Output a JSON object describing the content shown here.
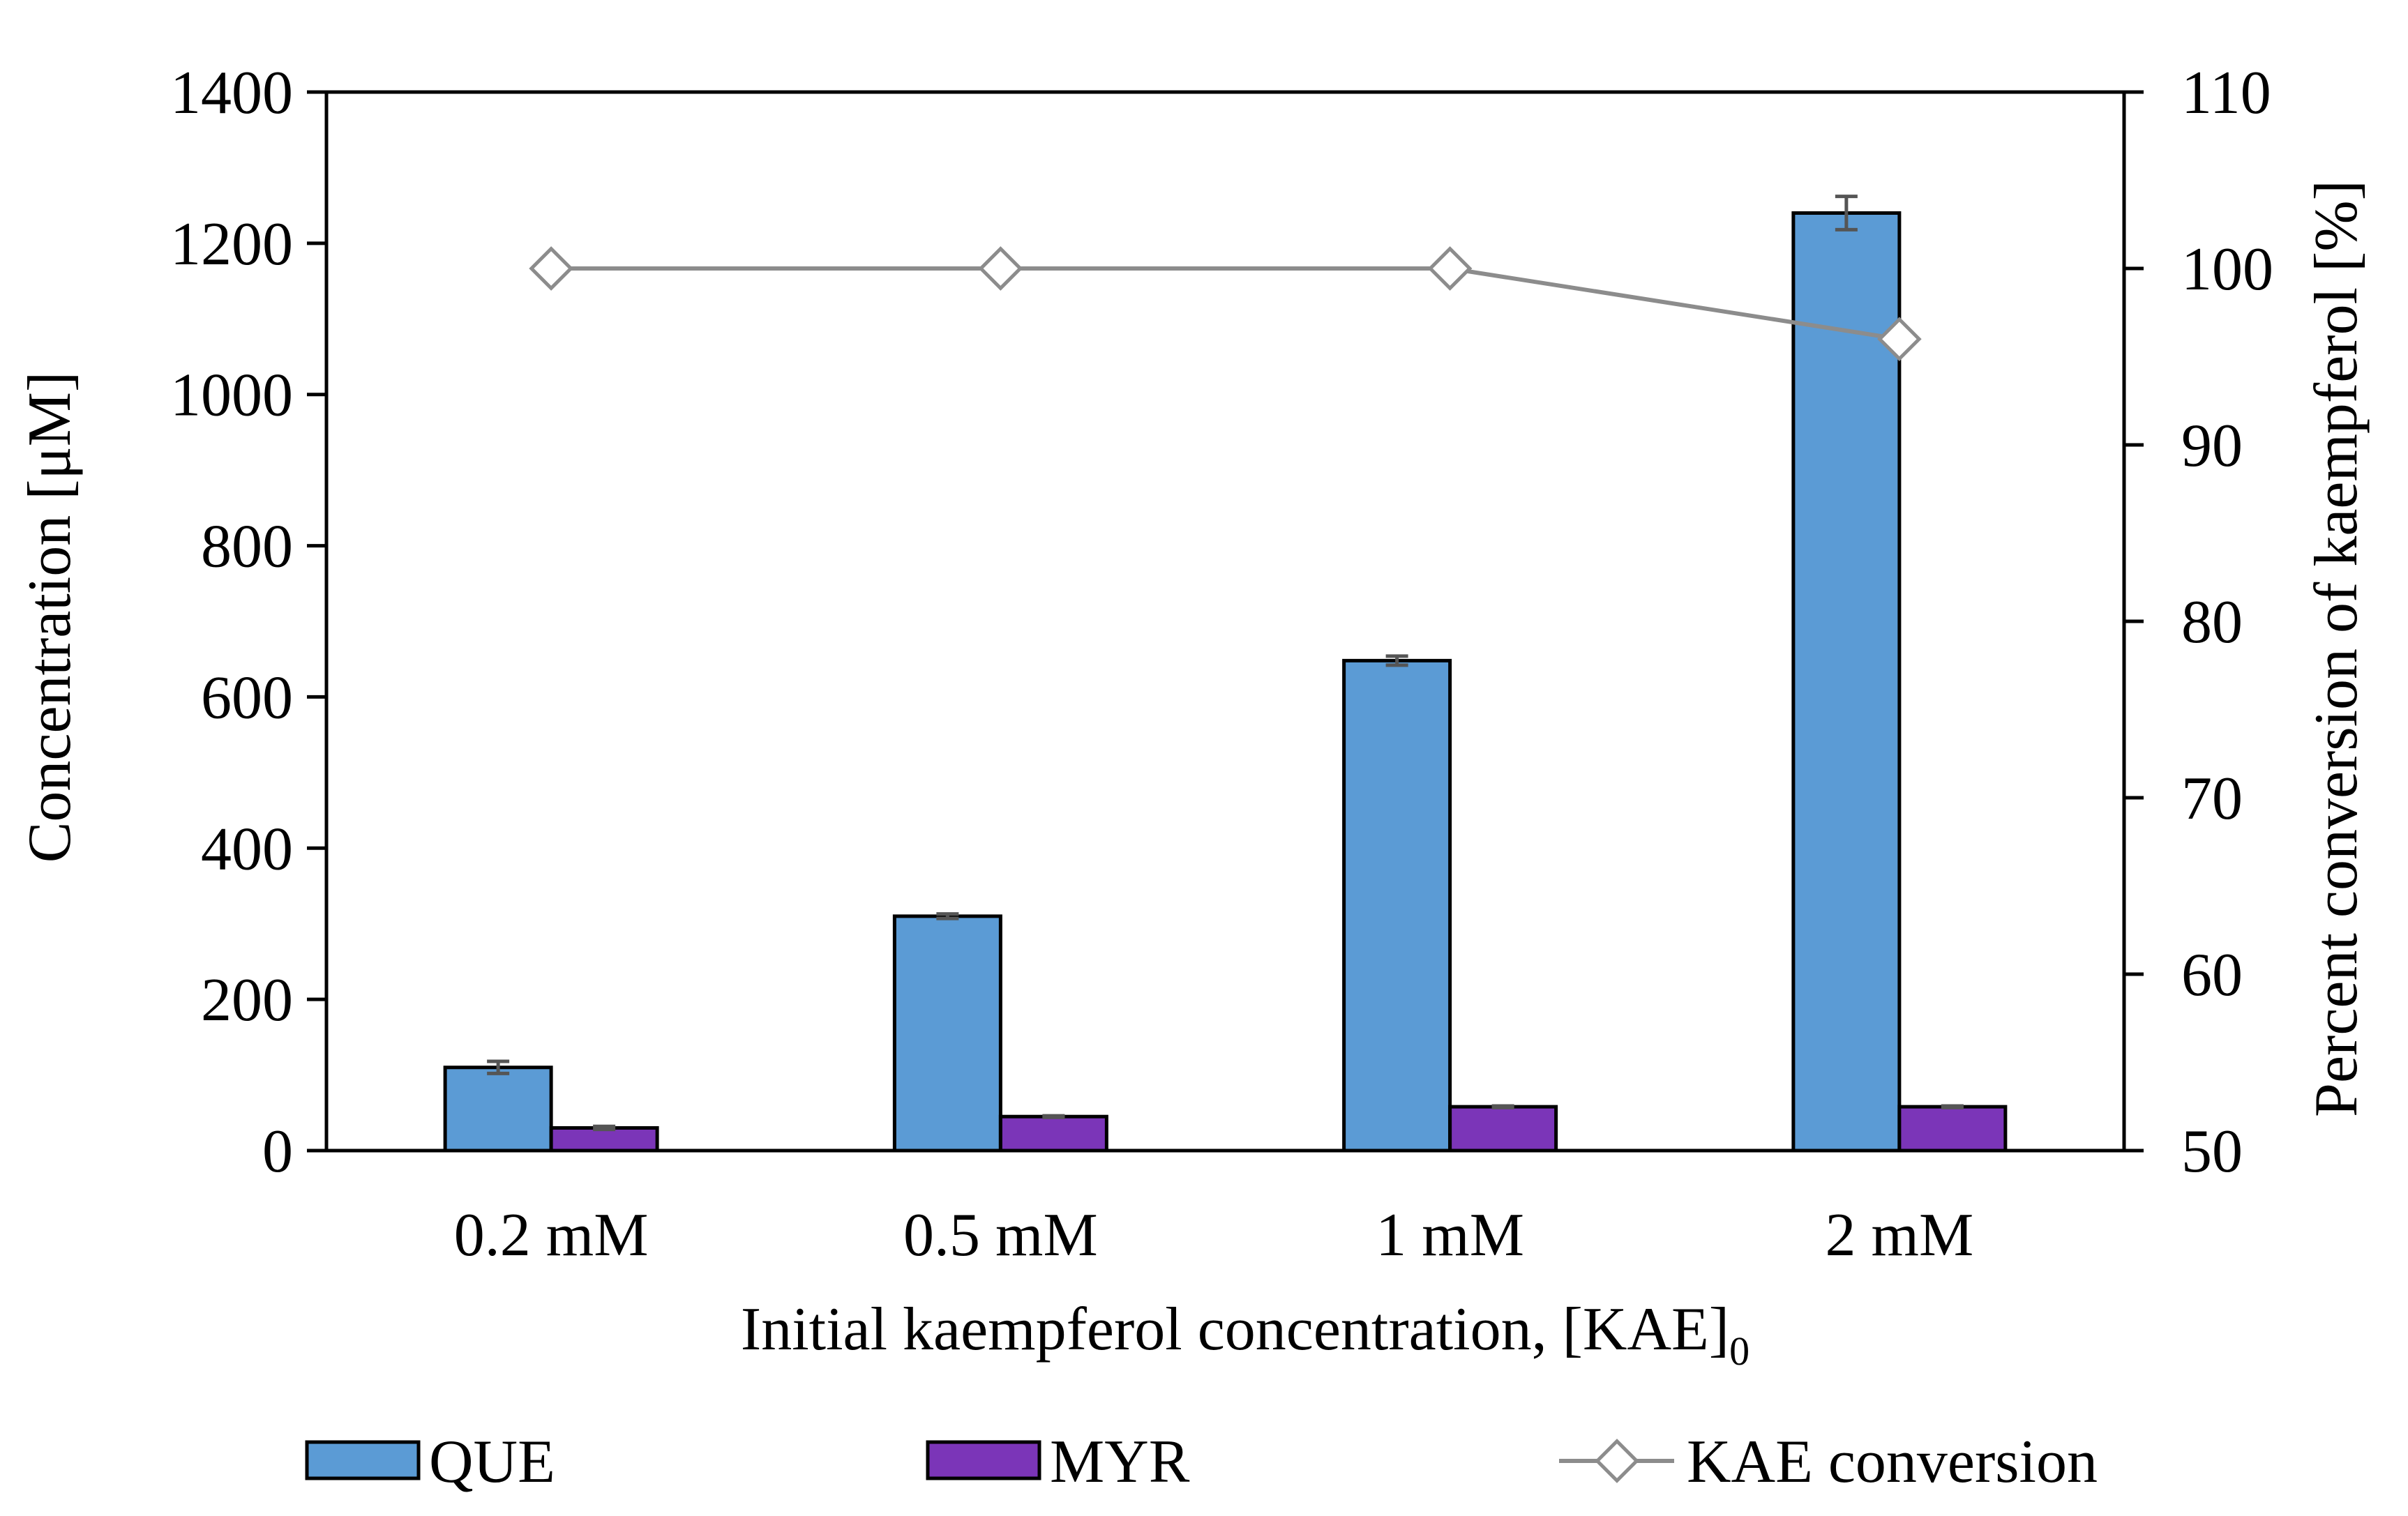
{
  "chart_data": {
    "type": "bar+line",
    "categories": [
      "0.2 mM",
      "0.5 mM",
      "1 mM",
      "2 mM"
    ],
    "xlabel_main": "Initial kaempferol concentration, [KAE]",
    "xlabel_sub": "0",
    "ylabel": "Concentration [μM]",
    "y2label": "Percent conversion of kaempferol [%]",
    "ylim": [
      0,
      1400
    ],
    "yticks": [
      0,
      200,
      400,
      600,
      800,
      1000,
      1200,
      1400
    ],
    "y2lim": [
      50,
      110
    ],
    "y2ticks": [
      50,
      60,
      70,
      80,
      90,
      100,
      110
    ],
    "bar_series": [
      {
        "name": "QUE",
        "color": "#5b9bd5",
        "values": [
          110,
          310,
          648,
          1240
        ],
        "errors": [
          8,
          3,
          6,
          22
        ]
      },
      {
        "name": "MYR",
        "color": "#7b35b8",
        "values": [
          30,
          45,
          58,
          58
        ],
        "errors": [
          2,
          1,
          1,
          1
        ]
      }
    ],
    "line_series": [
      {
        "name": "KAE conversion",
        "color": "#8c8c8c",
        "values": [
          100,
          100,
          100,
          96
        ]
      }
    ],
    "legend": [
      "QUE",
      "MYR",
      "KAE conversion"
    ],
    "legend_position": "bottom"
  }
}
